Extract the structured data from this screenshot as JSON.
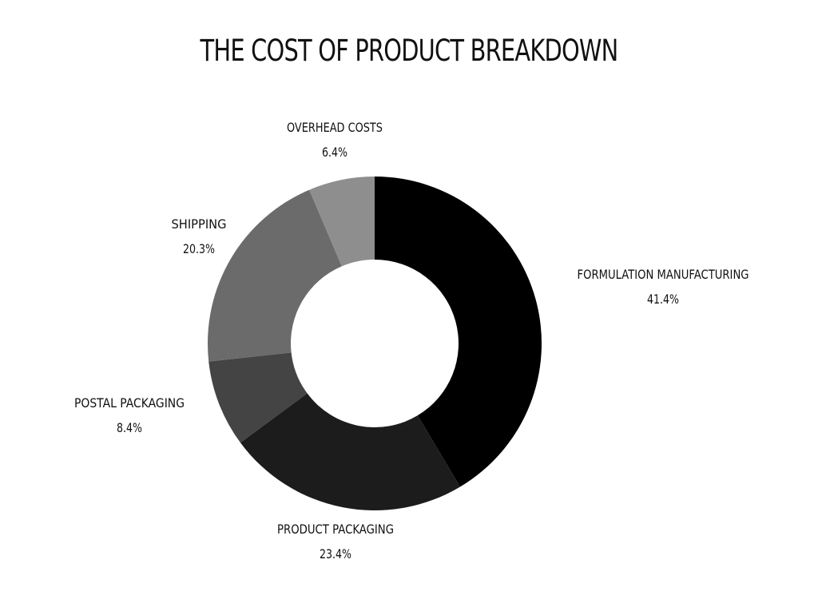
{
  "chart_data": {
    "type": "pie",
    "title": "THE COST OF PRODUCT BREAKDOWN",
    "donut": true,
    "slices": [
      {
        "label": "FORMULATION MANUFACTURING",
        "value": 41.4,
        "value_label": "41.4%",
        "color": "#000000"
      },
      {
        "label": "PRODUCT PACKAGING",
        "value": 23.4,
        "value_label": "23.4%",
        "color": "#1c1c1c"
      },
      {
        "label": "POSTAL PACKAGING",
        "value": 8.4,
        "value_label": "8.4%",
        "color": "#444444"
      },
      {
        "label": "SHIPPING",
        "value": 20.3,
        "value_label": "20.3%",
        "color": "#6b6b6b"
      },
      {
        "label": "OVERHEAD COSTS",
        "value": 6.4,
        "value_label": "6.4%",
        "color": "#8e8e8e"
      }
    ]
  }
}
